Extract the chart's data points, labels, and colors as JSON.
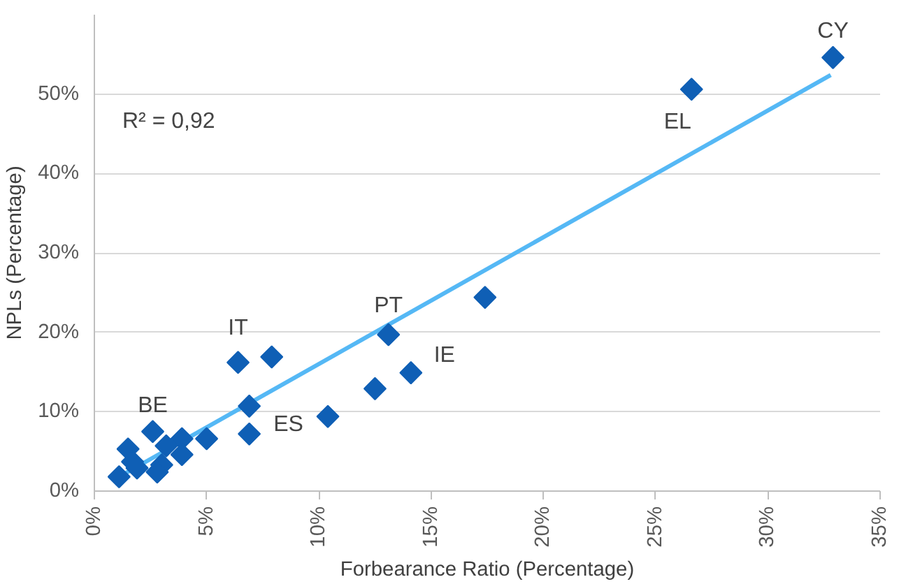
{
  "chart_data": {
    "type": "scatter",
    "xlabel": "Forbearance Ratio (Percentage)",
    "ylabel": "NPLs (Percentage)",
    "xlim": [
      0,
      35
    ],
    "ylim": [
      0,
      60
    ],
    "xticks": [
      {
        "value": 0,
        "label": "0%"
      },
      {
        "value": 5,
        "label": "5%"
      },
      {
        "value": 10,
        "label": "10%"
      },
      {
        "value": 15,
        "label": "15%"
      },
      {
        "value": 20,
        "label": "20%"
      },
      {
        "value": 25,
        "label": "25%"
      },
      {
        "value": 30,
        "label": "30%"
      },
      {
        "value": 35,
        "label": "35%"
      }
    ],
    "yticks": [
      {
        "value": 0,
        "label": "0%"
      },
      {
        "value": 10,
        "label": "10%"
      },
      {
        "value": 20,
        "label": "20%"
      },
      {
        "value": 30,
        "label": "30%"
      },
      {
        "value": 40,
        "label": "40%"
      },
      {
        "value": 50,
        "label": "50%"
      }
    ],
    "grid": "y",
    "series": [
      {
        "marker": "diamond",
        "color": "#0f5fb5",
        "x": [
          32.9,
          26.6,
          17.4,
          13.1,
          14.1,
          12.5,
          10.4,
          6.4,
          7.9,
          6.9,
          6.9,
          5.0,
          3.9,
          3.9,
          2.6,
          3.2,
          3.0,
          2.8,
          1.5,
          1.7,
          1.9,
          1.1
        ],
        "values": [
          54.6,
          50.6,
          24.4,
          19.7,
          14.9,
          12.9,
          9.4,
          16.2,
          16.9,
          10.7,
          7.2,
          6.6,
          6.6,
          4.6,
          7.5,
          5.7,
          3.3,
          2.4,
          5.3,
          3.7,
          2.9,
          1.8
        ]
      },
      {
        "type": "line",
        "color": "#55b8f5",
        "x": [
          1.1,
          32.8
        ],
        "values": [
          1.8,
          52.4
        ]
      }
    ],
    "annotations": [
      "R² = 0,92",
      {
        "text": "CY",
        "x": 32.9,
        "y": 54.6
      },
      {
        "text": "EL",
        "x": 26.6,
        "y": 50.6
      },
      {
        "text": "PT",
        "x": 13.1,
        "y": 19.7
      },
      {
        "text": "IE",
        "x": 14.1,
        "y": 14.9
      },
      {
        "text": "IT",
        "x": 6.4,
        "y": 16.2
      },
      {
        "text": "ES",
        "x": 6.9,
        "y": 10.7
      },
      {
        "text": "BE",
        "x": 2.6,
        "y": 7.5
      }
    ]
  }
}
